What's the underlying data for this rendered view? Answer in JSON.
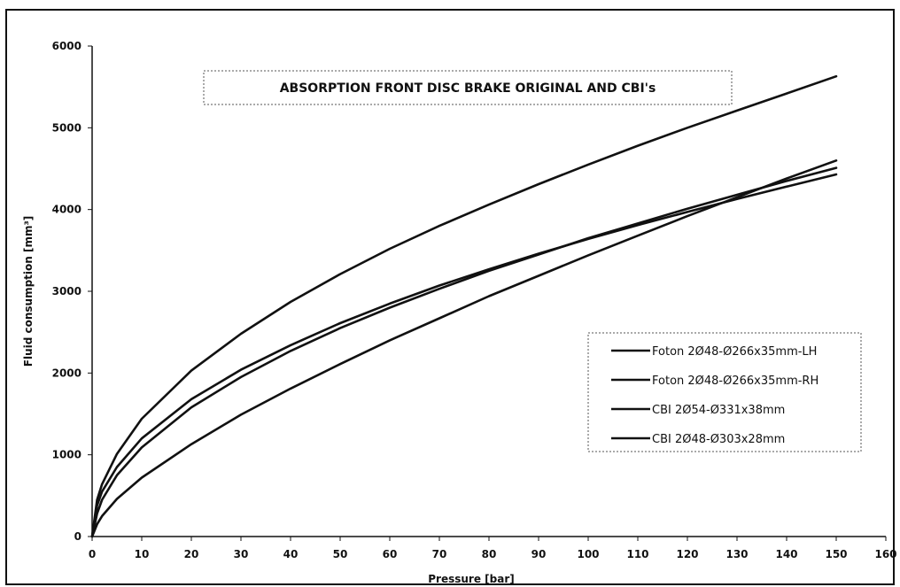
{
  "chart_data": {
    "type": "line",
    "title": "ABSORPTION FRONT DISC BRAKE ORIGINAL AND CBI's",
    "xlabel": "Pressure [bar]",
    "ylabel": "Fluid consumption [mm³]",
    "xlim": [
      0,
      160
    ],
    "ylim": [
      0,
      6000
    ],
    "xticks": [
      "0",
      "10",
      "20",
      "30",
      "40",
      "50",
      "60",
      "70",
      "80",
      "90",
      "100",
      "110",
      "120",
      "130",
      "140",
      "150",
      "160"
    ],
    "yticks": [
      "0",
      "1000",
      "2000",
      "3000",
      "4000",
      "5000",
      "6000"
    ],
    "grid": false,
    "legend_position": "right",
    "series": [
      {
        "name": "Foton 2Ø48-Ø266x35mm-LH",
        "x": [
          0,
          1,
          2,
          5,
          10,
          20,
          30,
          40,
          50,
          60,
          70,
          80,
          90,
          100,
          110,
          120,
          130,
          140,
          150
        ],
        "y": [
          0,
          450,
          640,
          1010,
          1440,
          2030,
          2480,
          2870,
          3210,
          3520,
          3800,
          4060,
          4310,
          4550,
          4780,
          5000,
          5210,
          5420,
          5630
        ]
      },
      {
        "name": "Foton 2Ø48-Ø266x35mm-RH",
        "x": [
          0,
          1,
          2,
          5,
          10,
          20,
          30,
          40,
          50,
          60,
          70,
          80,
          90,
          100,
          110,
          120,
          130,
          140,
          150
        ],
        "y": [
          0,
          380,
          550,
          850,
          1200,
          1680,
          2040,
          2340,
          2610,
          2850,
          3070,
          3270,
          3460,
          3640,
          3810,
          3970,
          4130,
          4280,
          4430
        ]
      },
      {
        "name": "CBI 2Ø54-Ø331x38mm",
        "x": [
          0,
          1,
          2,
          5,
          10,
          20,
          30,
          40,
          50,
          60,
          70,
          80,
          90,
          100,
          110,
          120,
          130,
          140,
          150
        ],
        "y": [
          0,
          280,
          450,
          750,
          1090,
          1580,
          1950,
          2270,
          2550,
          2800,
          3030,
          3250,
          3450,
          3650,
          3830,
          4010,
          4180,
          4350,
          4510
        ]
      },
      {
        "name": "CBI 2Ø48-Ø303x28mm",
        "x": [
          0,
          1,
          2,
          5,
          10,
          20,
          30,
          40,
          50,
          60,
          70,
          80,
          90,
          100,
          110,
          120,
          130,
          140,
          150
        ],
        "y": [
          0,
          150,
          250,
          460,
          720,
          1130,
          1490,
          1810,
          2110,
          2400,
          2670,
          2940,
          3190,
          3440,
          3680,
          3920,
          4150,
          4380,
          4600
        ]
      }
    ]
  }
}
